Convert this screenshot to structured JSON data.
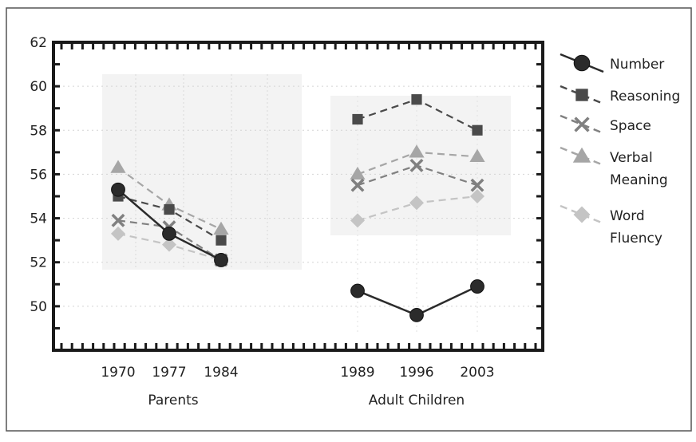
{
  "chart_data": {
    "type": "line",
    "title": "",
    "ylim": [
      48,
      62
    ],
    "yticks": [
      50,
      52,
      54,
      56,
      58,
      60,
      62
    ],
    "grid": true,
    "legend_position": "right",
    "groups": [
      {
        "label": "Parents",
        "x": [
          "1970",
          "1977",
          "1984"
        ]
      },
      {
        "label": "Adult Children",
        "x": [
          "1989",
          "1996",
          "2003"
        ]
      }
    ],
    "series": [
      {
        "name": "Number",
        "legend_lines": [
          "Number"
        ],
        "color": "#2b2b2b",
        "dash": "solid",
        "marker": "circle",
        "parents": [
          55.3,
          53.3,
          52.1
        ],
        "children": [
          50.7,
          49.6,
          50.9
        ]
      },
      {
        "name": "Reasoning",
        "legend_lines": [
          "Reasoning"
        ],
        "color": "#4a4a4a",
        "dash": "dashed",
        "marker": "square",
        "parents": [
          55.0,
          54.4,
          53.0
        ],
        "children": [
          58.5,
          59.4,
          58.0
        ]
      },
      {
        "name": "Space",
        "legend_lines": [
          "Space"
        ],
        "color": "#808080",
        "dash": "dashed",
        "marker": "x",
        "parents": [
          53.9,
          53.6,
          52.1
        ],
        "children": [
          55.5,
          56.4,
          55.5
        ]
      },
      {
        "name": "Verbal Meaning",
        "legend_lines": [
          "Verbal",
          "Meaning"
        ],
        "color": "#a6a6a6",
        "dash": "dashed",
        "marker": "triangle",
        "parents": [
          56.3,
          54.6,
          53.5
        ],
        "children": [
          56.0,
          57.0,
          56.8
        ]
      },
      {
        "name": "Word Fluency",
        "legend_lines": [
          "Word",
          "Fluency"
        ],
        "color": "#c4c4c4",
        "dash": "dashed",
        "marker": "diamond",
        "parents": [
          53.3,
          52.8,
          52.1
        ],
        "children": [
          53.9,
          54.7,
          55.0
        ]
      }
    ]
  }
}
